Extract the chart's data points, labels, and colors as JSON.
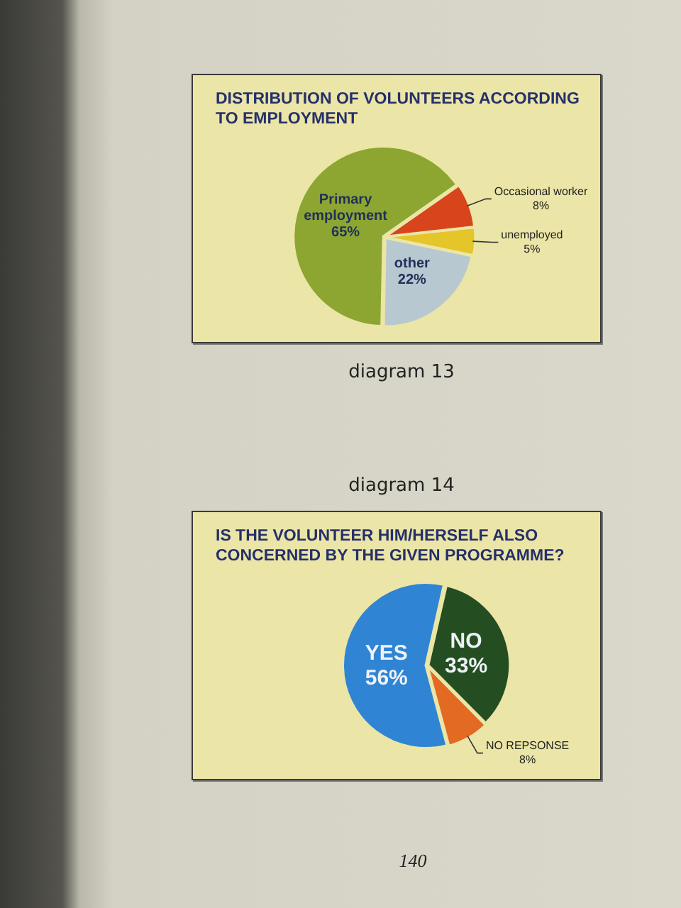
{
  "chart_data": [
    {
      "type": "pie",
      "title": "DISTRIBUTION OF VOLUNTEERS ACCORDING TO EMPLOYMENT",
      "categories": [
        "Primary employment",
        "Occasional worker",
        "unemployed",
        "other"
      ],
      "values": [
        65,
        8,
        5,
        22
      ],
      "colors": [
        "#8ca631",
        "#d8441c",
        "#e4c52a",
        "#b8c8d0"
      ],
      "value_labels": [
        "65%",
        "8%",
        "5%",
        "22%"
      ],
      "annotations": [
        "diagram 13"
      ]
    },
    {
      "type": "pie",
      "title": "IS THE VOLUNTEER HIM/HERSELF ALSO CONCERNED BY THE GIVEN PROGRAMME?",
      "categories": [
        "YES",
        "NO",
        "NO REPSONSE"
      ],
      "values": [
        56,
        33,
        8
      ],
      "colors": [
        "#2f84d4",
        "#244e22",
        "#e26a22"
      ],
      "value_labels": [
        "56%",
        "33%",
        "8%"
      ],
      "annotations": [
        "diagram 14",
        "140"
      ]
    }
  ]
}
